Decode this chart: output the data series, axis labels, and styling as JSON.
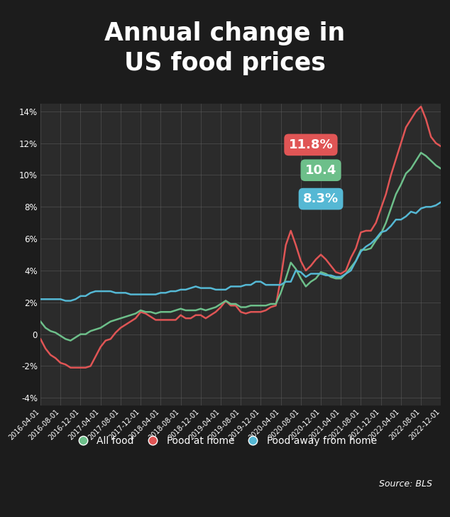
{
  "title": "Annual change in\nUS food prices",
  "source": "Source: BLS",
  "ylim": [
    -4.5,
    14.5
  ],
  "yticks": [
    -4,
    -2,
    0,
    2,
    4,
    6,
    8,
    10,
    12,
    14
  ],
  "ytick_labels": [
    "-4%",
    "-2%",
    "0",
    "2%",
    "4%",
    "6%",
    "8%",
    "10%",
    "12%",
    "14%"
  ],
  "annotation_all_food": "10.4",
  "annotation_food_home": "11.8%",
  "annotation_food_away": "8.3%",
  "color_all_food": "#6dbf8a",
  "color_food_home": "#e05555",
  "color_food_away": "#55b8d4",
  "bg_plot": "#2a2a2aaa",
  "title_bg": "#0a0a0aee",
  "grid_color": "#606060",
  "text_color": "#ffffff",
  "legend_labels": [
    "All food",
    "Food at home",
    "Food away from home"
  ],
  "all_food": [
    0.8,
    0.4,
    0.2,
    0.1,
    -0.1,
    -0.3,
    -0.4,
    -0.2,
    0.0,
    0.0,
    0.2,
    0.3,
    0.4,
    0.6,
    0.8,
    0.9,
    1.0,
    1.1,
    1.2,
    1.3,
    1.5,
    1.4,
    1.4,
    1.3,
    1.4,
    1.4,
    1.4,
    1.5,
    1.6,
    1.5,
    1.5,
    1.5,
    1.6,
    1.5,
    1.6,
    1.7,
    1.9,
    2.1,
    1.9,
    1.9,
    1.7,
    1.7,
    1.8,
    1.8,
    1.8,
    1.8,
    1.9,
    1.9,
    2.6,
    3.5,
    4.5,
    4.1,
    3.5,
    3.0,
    3.3,
    3.5,
    3.9,
    3.8,
    3.6,
    3.5,
    3.5,
    3.8,
    4.2,
    4.6,
    5.3,
    5.3,
    5.4,
    5.9,
    6.3,
    7.0,
    7.9,
    8.8,
    9.4,
    10.1,
    10.4,
    10.9,
    11.4,
    11.2,
    10.9,
    10.6,
    10.4
  ],
  "food_home": [
    -0.3,
    -0.9,
    -1.3,
    -1.5,
    -1.8,
    -1.9,
    -2.1,
    -2.1,
    -2.1,
    -2.1,
    -2.0,
    -1.4,
    -0.8,
    -0.4,
    -0.3,
    0.1,
    0.4,
    0.6,
    0.8,
    1.0,
    1.4,
    1.3,
    1.1,
    0.9,
    0.9,
    0.9,
    0.9,
    0.9,
    1.2,
    1.0,
    1.0,
    1.2,
    1.2,
    1.0,
    1.2,
    1.4,
    1.7,
    2.1,
    1.8,
    1.8,
    1.4,
    1.3,
    1.4,
    1.4,
    1.4,
    1.5,
    1.7,
    1.8,
    3.5,
    5.6,
    6.5,
    5.6,
    4.6,
    4.0,
    4.3,
    4.7,
    5.0,
    4.7,
    4.3,
    3.9,
    3.8,
    4.0,
    4.8,
    5.4,
    6.4,
    6.5,
    6.5,
    7.0,
    7.9,
    8.8,
    10.0,
    11.0,
    12.0,
    13.0,
    13.5,
    14.0,
    14.3,
    13.5,
    12.4,
    12.0,
    11.8
  ],
  "food_away": [
    2.2,
    2.2,
    2.2,
    2.2,
    2.2,
    2.1,
    2.1,
    2.2,
    2.4,
    2.4,
    2.6,
    2.7,
    2.7,
    2.7,
    2.7,
    2.6,
    2.6,
    2.6,
    2.5,
    2.5,
    2.5,
    2.5,
    2.5,
    2.5,
    2.6,
    2.6,
    2.7,
    2.7,
    2.8,
    2.8,
    2.9,
    3.0,
    2.9,
    2.9,
    2.9,
    2.8,
    2.8,
    2.8,
    3.0,
    3.0,
    3.0,
    3.1,
    3.1,
    3.3,
    3.3,
    3.1,
    3.1,
    3.1,
    3.1,
    3.3,
    3.3,
    4.0,
    3.9,
    3.6,
    3.8,
    3.8,
    3.8,
    3.7,
    3.7,
    3.6,
    3.6,
    3.8,
    4.0,
    4.6,
    5.2,
    5.5,
    5.7,
    6.0,
    6.4,
    6.5,
    6.8,
    7.2,
    7.2,
    7.4,
    7.7,
    7.6,
    7.9,
    8.0,
    8.0,
    8.1,
    8.3
  ],
  "x_tick_positions": [
    0,
    4,
    8,
    12,
    16,
    20,
    24,
    28,
    32,
    36,
    40,
    44,
    48,
    52,
    56,
    60,
    64,
    68,
    72,
    76,
    80
  ],
  "x_tick_labels": [
    "2016-04-01",
    "2016-08-01",
    "2016-12-01",
    "2017-04-01",
    "2017-08-01",
    "2017-12-01",
    "2018-04-01",
    "2018-08-01",
    "2018-12-01",
    "2019-04-01",
    "2019-08-01",
    "2019-12-01",
    "2020-04-01",
    "2020-08-01",
    "2020-12-01",
    "2021-04-01",
    "2021-08-01",
    "2021-12-01",
    "2022-04-01",
    "2022-08-01",
    "2022-12-01"
  ],
  "fig_width": 6.34,
  "fig_height": 7.28,
  "dpi": 100
}
